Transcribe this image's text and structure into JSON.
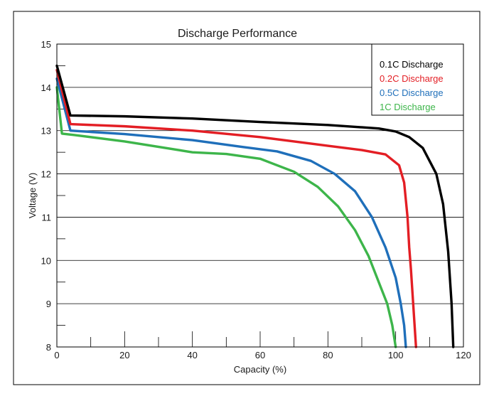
{
  "chart_data": {
    "type": "line",
    "title": "Discharge Performance",
    "xlabel": "Capacity (%)",
    "ylabel": "Voltage (V)",
    "xlim": [
      0,
      120
    ],
    "ylim": [
      8,
      15
    ],
    "x_ticks": [
      "0",
      "20",
      "40",
      "60",
      "80",
      "100",
      "120"
    ],
    "y_ticks": [
      "8",
      "9",
      "10",
      "11",
      "12",
      "13",
      "14",
      "15"
    ],
    "grid": "horizontal",
    "legend_position": "top-right",
    "series": [
      {
        "name": "0.1C Discharge",
        "color": "#000000",
        "x": [
          0,
          4,
          20,
          40,
          60,
          80,
          95,
          100,
          104,
          108,
          112,
          114,
          115.5,
          116.5,
          117
        ],
        "y": [
          14.5,
          13.35,
          13.33,
          13.28,
          13.2,
          13.13,
          13.05,
          12.98,
          12.85,
          12.6,
          12.0,
          11.3,
          10.2,
          9.0,
          8.0
        ]
      },
      {
        "name": "0.2C Discharge",
        "color": "#e31e24",
        "x": [
          0,
          4,
          20,
          40,
          60,
          70,
          80,
          90,
          97,
          101,
          102.5,
          103.5,
          104,
          104.5,
          105,
          106
        ],
        "y": [
          14.4,
          13.15,
          13.1,
          13.0,
          12.85,
          12.75,
          12.65,
          12.55,
          12.45,
          12.2,
          11.8,
          11.0,
          10.3,
          9.8,
          9.2,
          8.0
        ]
      },
      {
        "name": "0.5C Discharge",
        "color": "#1f6fba",
        "x": [
          0,
          4,
          20,
          40,
          55,
          65,
          75,
          82,
          88,
          93,
          97,
          100,
          101.5,
          102.5,
          103
        ],
        "y": [
          14.2,
          13.0,
          12.92,
          12.78,
          12.62,
          12.52,
          12.3,
          12.0,
          11.6,
          11.0,
          10.3,
          9.6,
          9.0,
          8.5,
          8.0
        ]
      },
      {
        "name": "1C Discharge",
        "color": "#3db54a",
        "x": [
          0,
          1.5,
          5,
          20,
          40,
          50,
          60,
          70,
          77,
          83,
          88,
          92,
          95,
          97.5,
          99,
          100
        ],
        "y": [
          14.0,
          12.93,
          12.9,
          12.75,
          12.5,
          12.46,
          12.35,
          12.05,
          11.7,
          11.25,
          10.7,
          10.1,
          9.5,
          9.0,
          8.5,
          8.0
        ]
      }
    ]
  }
}
